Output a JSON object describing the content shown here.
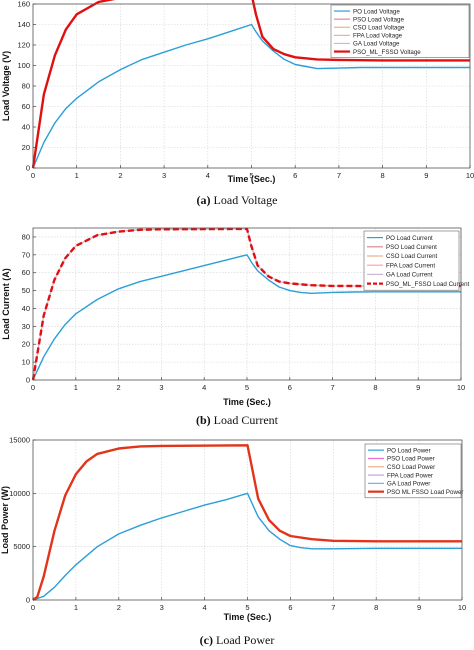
{
  "chart_data": [
    {
      "type": "line",
      "caption_letter": "(a)",
      "caption_text": "Load Voltage",
      "xlabel": "Time (Sec.)",
      "ylabel": "Load Voltage (V)",
      "xlim": [
        0,
        10
      ],
      "ylim": [
        0,
        160
      ],
      "xticks": [
        0,
        1,
        2,
        3,
        4,
        5,
        6,
        7,
        8,
        9,
        10
      ],
      "yticks": [
        0,
        20,
        40,
        60,
        80,
        100,
        120,
        140,
        160
      ],
      "grid": true,
      "legend_position": "top-right",
      "series": [
        {
          "name": "PO Load Voltage",
          "color": "#2a9fd8",
          "style": "solid",
          "x": [
            0,
            0.25,
            0.5,
            0.75,
            1,
            1.5,
            2,
            2.5,
            3,
            3.5,
            4,
            4.5,
            5,
            5.1,
            5.25,
            5.5,
            5.75,
            6,
            6.25,
            6.5,
            7,
            7.5,
            8,
            9,
            10
          ],
          "y": [
            0,
            25,
            44,
            58,
            68,
            84,
            96,
            106,
            113,
            120,
            126,
            133,
            140,
            133,
            124,
            114,
            106,
            101,
            99,
            97,
            97.5,
            98,
            98,
            98,
            98
          ]
        },
        {
          "name": "PSO Load Voltage",
          "color": "#d98b9a",
          "style": "solid",
          "x": [
            0,
            0.25,
            0.5,
            0.75,
            1,
            1.5,
            2,
            2.5,
            3,
            5,
            5.1,
            5.25,
            5.5,
            5.75,
            6,
            6.5,
            7,
            8,
            10
          ],
          "y": [
            0,
            72,
            110,
            135,
            150,
            162,
            166,
            168,
            169,
            169.5,
            150,
            128,
            116,
            111,
            108,
            106,
            105.5,
            105,
            105
          ]
        },
        {
          "name": "CSO Load Voltage",
          "color": "#e6b38a",
          "style": "solid",
          "x": [
            0,
            0.25,
            0.5,
            0.75,
            1,
            1.5,
            2,
            2.5,
            3,
            5,
            5.1,
            5.25,
            5.5,
            5.75,
            6,
            6.5,
            7,
            8,
            10
          ],
          "y": [
            0,
            72,
            110,
            135,
            150,
            162,
            166,
            168,
            169,
            169.5,
            150,
            128,
            116,
            111,
            108,
            106,
            105.5,
            105,
            105
          ]
        },
        {
          "name": "FPA Load Voltage",
          "color": "#f3a7a7",
          "style": "solid",
          "x": [
            0,
            0.25,
            0.5,
            0.75,
            1,
            1.5,
            2,
            2.5,
            3,
            5,
            5.1,
            5.25,
            5.5,
            5.75,
            6,
            6.5,
            7,
            8,
            10
          ],
          "y": [
            0,
            72,
            110,
            135,
            150,
            162,
            166,
            168,
            169,
            169.5,
            150,
            128,
            116,
            111,
            108,
            106,
            105.5,
            105,
            105
          ]
        },
        {
          "name": "GA Load Voltage",
          "color": "#c9b6d9",
          "style": "solid",
          "x": [
            0,
            0.25,
            0.5,
            0.75,
            1,
            1.5,
            2,
            2.5,
            3,
            5,
            5.1,
            5.25,
            5.5,
            5.75,
            6,
            6.5,
            7,
            8,
            10
          ],
          "y": [
            0,
            72,
            110,
            135,
            150,
            162,
            166,
            168,
            169,
            169.5,
            150,
            128,
            116,
            111,
            108,
            106,
            105.5,
            105,
            105
          ]
        },
        {
          "name": "PSO_ML_FSSO Voltage",
          "color": "#e01010",
          "style": "solid",
          "x": [
            0,
            0.25,
            0.5,
            0.75,
            1,
            1.5,
            2,
            2.5,
            3,
            5,
            5.1,
            5.25,
            5.5,
            5.75,
            6,
            6.5,
            7,
            8,
            10
          ],
          "y": [
            0,
            72,
            110,
            135,
            150,
            162,
            166,
            168,
            169,
            169.5,
            150,
            128,
            116,
            111,
            108,
            106,
            105.5,
            105,
            105
          ]
        }
      ]
    },
    {
      "type": "line",
      "caption_letter": "(b)",
      "caption_text": "Load Current",
      "xlabel": "Time (Sec.)",
      "ylabel": "Load Current (A)",
      "xlim": [
        0,
        10
      ],
      "ylim": [
        0,
        85
      ],
      "xticks": [
        0,
        1,
        2,
        3,
        4,
        5,
        6,
        7,
        8,
        9,
        10
      ],
      "yticks": [
        0,
        10,
        20,
        30,
        40,
        50,
        60,
        70,
        80
      ],
      "grid": true,
      "legend_position": "top-right",
      "series": [
        {
          "name": "PO Load Current",
          "color": "#2a9fd8",
          "style": "solid",
          "x": [
            0,
            0.25,
            0.5,
            0.75,
            1,
            1.5,
            2,
            2.5,
            3,
            3.5,
            4,
            4.5,
            5,
            5.1,
            5.25,
            5.5,
            5.75,
            6,
            6.25,
            6.5,
            7,
            7.5,
            8,
            9,
            10
          ],
          "y": [
            0,
            13,
            23,
            31,
            37,
            45,
            51,
            55,
            58,
            61,
            64,
            67,
            70,
            66,
            61,
            56,
            52,
            50,
            49,
            48.5,
            49,
            49.2,
            49.3,
            49.3,
            49.3
          ]
        },
        {
          "name": "PSO Load Current",
          "color": "#d98b9a",
          "style": "solid",
          "x": [
            0,
            0.25,
            0.5,
            0.75,
            1,
            1.5,
            2,
            2.5,
            3,
            5,
            5.1,
            5.25,
            5.5,
            5.75,
            6,
            6.5,
            7,
            8,
            10
          ],
          "y": [
            0,
            36,
            56,
            68,
            75,
            81,
            83,
            84,
            84.3,
            84.5,
            75,
            64,
            58,
            55,
            54,
            53,
            52.6,
            52.5,
            52.5
          ]
        },
        {
          "name": "CSO Load Current",
          "color": "#e6b38a",
          "style": "solid",
          "x": [
            0,
            0.25,
            0.5,
            0.75,
            1,
            1.5,
            2,
            2.5,
            3,
            5,
            5.1,
            5.25,
            5.5,
            5.75,
            6,
            6.5,
            7,
            8,
            10
          ],
          "y": [
            0,
            36,
            56,
            68,
            75,
            81,
            83,
            84,
            84.3,
            84.5,
            75,
            64,
            58,
            55,
            54,
            53,
            52.6,
            52.5,
            52.5
          ]
        },
        {
          "name": "FPA Load Current",
          "color": "#f3a7a7",
          "style": "solid",
          "x": [
            0,
            0.25,
            0.5,
            0.75,
            1,
            1.5,
            2,
            2.5,
            3,
            5,
            5.1,
            5.25,
            5.5,
            5.75,
            6,
            6.5,
            7,
            8,
            10
          ],
          "y": [
            0,
            36,
            56,
            68,
            75,
            81,
            83,
            84,
            84.3,
            84.5,
            75,
            64,
            58,
            55,
            54,
            53,
            52.6,
            52.5,
            52.5
          ]
        },
        {
          "name": "GA Load Current",
          "color": "#c9b6d9",
          "style": "solid",
          "x": [
            0,
            0.25,
            0.5,
            0.75,
            1,
            1.5,
            2,
            2.5,
            3,
            5,
            5.1,
            5.25,
            5.5,
            5.75,
            6,
            6.5,
            7,
            8,
            10
          ],
          "y": [
            0,
            36,
            56,
            68,
            75,
            81,
            83,
            84,
            84.3,
            84.5,
            75,
            64,
            58,
            55,
            54,
            53,
            52.6,
            52.5,
            52.5
          ]
        },
        {
          "name": "PSO_ML_FSSO Load Current",
          "color": "#e01010",
          "style": "dashed",
          "x": [
            0,
            0.25,
            0.5,
            0.75,
            1,
            1.5,
            2,
            2.5,
            3,
            5,
            5.1,
            5.25,
            5.5,
            5.75,
            6,
            6.5,
            7,
            8,
            10
          ],
          "y": [
            0,
            36,
            56,
            68,
            75,
            81,
            83,
            84,
            84.3,
            84.5,
            75,
            64,
            58,
            55,
            54,
            53,
            52.6,
            52.5,
            52.5
          ]
        }
      ]
    },
    {
      "type": "line",
      "caption_letter": "(c)",
      "caption_text": "Load Power",
      "xlabel": "Time (Sec.)",
      "ylabel": "Load Power (W)",
      "xlim": [
        0,
        10
      ],
      "ylim": [
        0,
        15000
      ],
      "xticks": [
        0,
        1,
        2,
        3,
        4,
        5,
        6,
        7,
        8,
        9,
        10
      ],
      "yticks": [
        0,
        5000,
        10000,
        15000
      ],
      "grid": true,
      "legend_position": "top-right",
      "series": [
        {
          "name": "PO Load Power",
          "color": "#2a9fd8",
          "style": "solid",
          "x": [
            0,
            0.25,
            0.5,
            0.75,
            1,
            1.5,
            2,
            2.5,
            3,
            3.5,
            4,
            4.5,
            5,
            5.1,
            5.25,
            5.5,
            5.75,
            6,
            6.25,
            6.5,
            7,
            8,
            9,
            10
          ],
          "y": [
            0,
            350,
            1200,
            2300,
            3300,
            5000,
            6200,
            7000,
            7700,
            8300,
            8900,
            9400,
            10000,
            9100,
            7800,
            6500,
            5700,
            5100,
            4900,
            4800,
            4800,
            4850,
            4850,
            4850
          ]
        },
        {
          "name": "PSO Load Power",
          "color": "#e86fd0",
          "style": "solid",
          "x": [
            0,
            0.1,
            0.25,
            0.5,
            0.75,
            1,
            1.25,
            1.5,
            2,
            2.5,
            3,
            5,
            5.1,
            5.25,
            5.5,
            5.75,
            6,
            6.5,
            7,
            8,
            10
          ],
          "y": [
            0,
            300,
            2200,
            6500,
            9800,
            11800,
            13000,
            13700,
            14200,
            14400,
            14450,
            14500,
            12500,
            9500,
            7500,
            6500,
            6000,
            5700,
            5550,
            5500,
            5500
          ]
        },
        {
          "name": "CSO Load Power",
          "color": "#e6b38a",
          "style": "solid",
          "x": [
            0,
            0.1,
            0.25,
            0.5,
            0.75,
            1,
            1.25,
            1.5,
            2,
            2.5,
            3,
            5,
            5.1,
            5.25,
            5.5,
            5.75,
            6,
            6.5,
            7,
            8,
            10
          ],
          "y": [
            0,
            300,
            2200,
            6500,
            9800,
            11800,
            13000,
            13700,
            14200,
            14400,
            14450,
            14500,
            12500,
            9500,
            7500,
            6500,
            6000,
            5700,
            5550,
            5500,
            5500
          ]
        },
        {
          "name": "FPA Load Power",
          "color": "#b7a6e0",
          "style": "solid",
          "x": [
            0,
            0.1,
            0.25,
            0.5,
            0.75,
            1,
            1.25,
            1.5,
            2,
            2.5,
            3,
            5,
            5.1,
            5.25,
            5.5,
            5.75,
            6,
            6.5,
            7,
            8,
            10
          ],
          "y": [
            0,
            300,
            2200,
            6500,
            9800,
            11800,
            13000,
            13700,
            14200,
            14400,
            14450,
            14500,
            12500,
            9500,
            7500,
            6500,
            6000,
            5700,
            5550,
            5500,
            5500
          ]
        },
        {
          "name": "GA Load Power",
          "color": "#6fb2e8",
          "style": "solid",
          "x": [
            0,
            0.1,
            0.25,
            0.5,
            0.75,
            1,
            1.25,
            1.5,
            2,
            2.5,
            3,
            5,
            5.1,
            5.25,
            5.5,
            5.75,
            6,
            6.5,
            7,
            8,
            10
          ],
          "y": [
            0,
            300,
            2200,
            6500,
            9800,
            11800,
            13000,
            13700,
            14200,
            14400,
            14450,
            14500,
            12500,
            9500,
            7500,
            6500,
            6000,
            5700,
            5550,
            5500,
            5500
          ]
        },
        {
          "name": "PSO ML FSSO Load Power",
          "color": "#e0351a",
          "style": "solid",
          "x": [
            0,
            0.1,
            0.25,
            0.5,
            0.75,
            1,
            1.25,
            1.5,
            2,
            2.5,
            3,
            5,
            5.1,
            5.25,
            5.5,
            5.75,
            6,
            6.5,
            7,
            8,
            10
          ],
          "y": [
            0,
            300,
            2200,
            6500,
            9800,
            11800,
            13000,
            13700,
            14200,
            14400,
            14450,
            14500,
            12500,
            9500,
            7500,
            6500,
            6000,
            5700,
            5550,
            5500,
            5500
          ]
        }
      ]
    }
  ]
}
